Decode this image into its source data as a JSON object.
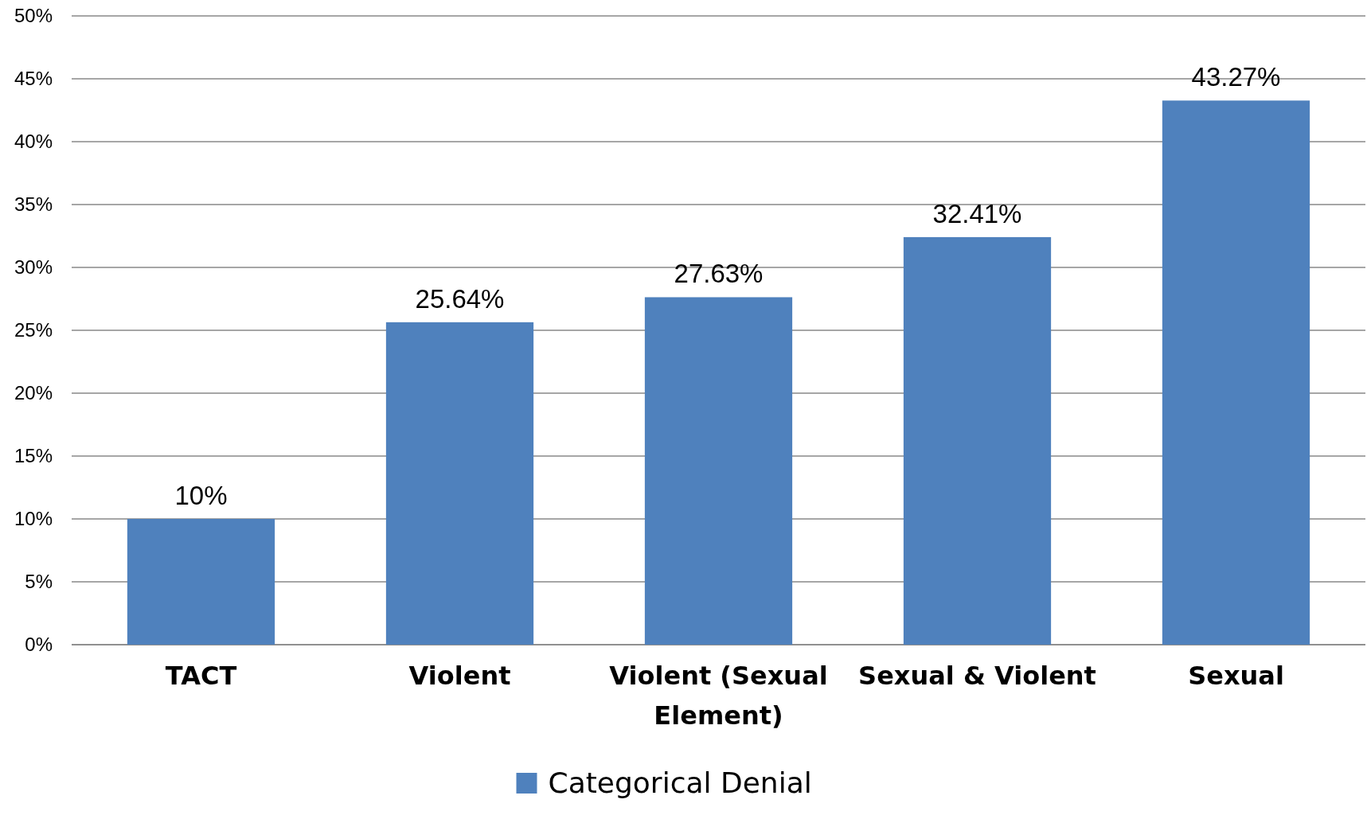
{
  "chart_data": {
    "type": "bar",
    "categories": [
      "TACT",
      "Violent",
      "Violent (Sexual Element)",
      "Sexual & Violent",
      "Sexual"
    ],
    "series": [
      {
        "name": "Categorical Denial",
        "color": "#4f81bd",
        "values": [
          10,
          25.64,
          27.63,
          32.41,
          43.27
        ],
        "value_labels": [
          "10%",
          "25.64%",
          "27.63%",
          "32.41%",
          "43.27%"
        ]
      }
    ],
    "ylim": [
      0,
      50
    ],
    "yticks": [
      {
        "value": 0,
        "label": "0%"
      },
      {
        "value": 5,
        "label": "5%"
      },
      {
        "value": 10,
        "label": "10%"
      },
      {
        "value": 15,
        "label": "15%"
      },
      {
        "value": 20,
        "label": "20%"
      },
      {
        "value": 25,
        "label": "25%"
      },
      {
        "value": 30,
        "label": "30%"
      },
      {
        "value": 35,
        "label": "35%"
      },
      {
        "value": 40,
        "label": "40%"
      },
      {
        "value": 45,
        "label": "45%"
      },
      {
        "value": 50,
        "label": "50%"
      }
    ],
    "grid": "y",
    "legend": "bottom"
  }
}
